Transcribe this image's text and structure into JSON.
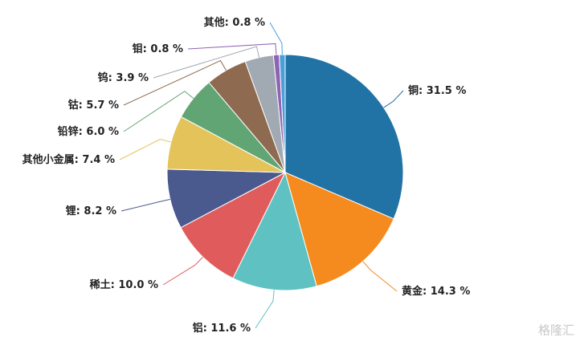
{
  "chart_data": {
    "type": "pie",
    "categories": [
      "铜",
      "黄金",
      "铝",
      "稀土",
      "锂",
      "其他小金属",
      "铅锌",
      "钴",
      "钨",
      "钼",
      "其他"
    ],
    "values": [
      31.5,
      14.3,
      11.6,
      10.0,
      8.2,
      7.4,
      6.0,
      5.7,
      3.9,
      0.8,
      0.8
    ],
    "value_labels": [
      "31.5 %",
      "14.3 %",
      "11.6 %",
      "10.0 %",
      "8.2 %",
      "7.4 %",
      "6.0 %",
      "5.7 %",
      "3.9 %",
      "0.8 %",
      "0.8 %"
    ],
    "label_separator": ": ",
    "colors": [
      "#2273a5",
      "#f58a1f",
      "#5fc1c1",
      "#e05c5c",
      "#4a5a8f",
      "#e4c45a",
      "#62a574",
      "#8e6b50",
      "#a1a9b3",
      "#8f63b2",
      "#4aa0d8"
    ],
    "watermark": "格隆汇"
  }
}
